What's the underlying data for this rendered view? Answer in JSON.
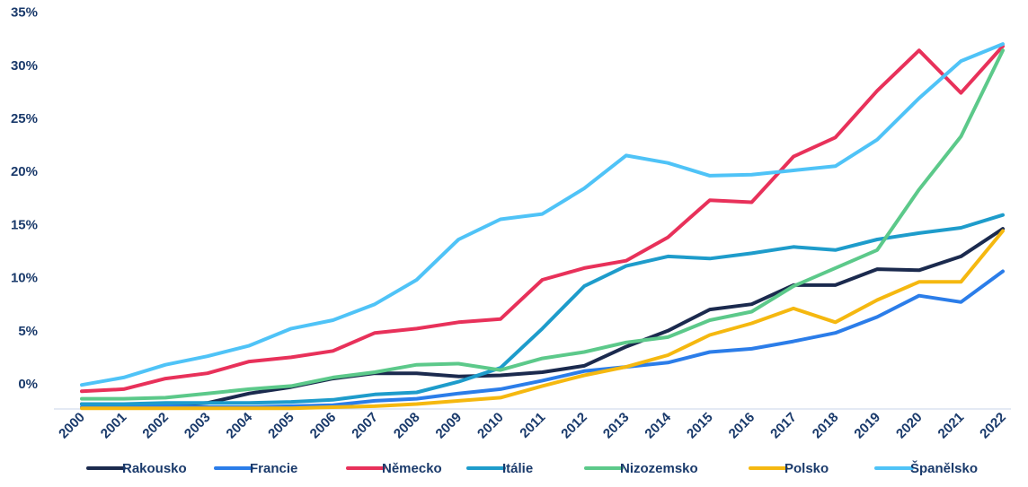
{
  "chart_data": {
    "type": "line",
    "x": [
      "2000",
      "2001",
      "2002",
      "2003",
      "2004",
      "2005",
      "2006",
      "2007",
      "2008",
      "2009",
      "2010",
      "2011",
      "2012",
      "2013",
      "2014",
      "2015",
      "2016",
      "2017",
      "2018",
      "2019",
      "2020",
      "2021",
      "2022"
    ],
    "yticks": [
      "0%",
      "5%",
      "10%",
      "15%",
      "20%",
      "25%",
      "30%",
      "35%"
    ],
    "ylim": [
      -2.5,
      35
    ],
    "grid": false,
    "legend_position": "bottom",
    "series": [
      {
        "name": "Rakousko",
        "color": "#1b2a4e",
        "values": [
          -1.9,
          -1.9,
          -2.0,
          -1.8,
          -0.9,
          -0.3,
          0.5,
          1.0,
          1.0,
          0.7,
          0.8,
          1.1,
          1.7,
          3.5,
          5.0,
          7.0,
          7.5,
          9.3,
          9.3,
          10.8,
          10.7,
          12.0,
          14.6
        ]
      },
      {
        "name": "Francie",
        "color": "#2b7de9",
        "values": [
          -2.2,
          -2.1,
          -2.1,
          -2.2,
          -2.2,
          -2.1,
          -2.0,
          -1.6,
          -1.4,
          -0.9,
          -0.5,
          0.3,
          1.2,
          1.6,
          2.0,
          3.0,
          3.3,
          4.0,
          4.8,
          6.3,
          8.3,
          7.7,
          10.6
        ]
      },
      {
        "name": "Německo",
        "color": "#e8315a",
        "values": [
          -0.7,
          -0.5,
          0.5,
          1.0,
          2.1,
          2.5,
          3.1,
          4.8,
          5.2,
          5.8,
          6.1,
          9.8,
          10.9,
          11.6,
          13.8,
          17.3,
          17.1,
          21.4,
          23.2,
          27.6,
          31.4,
          27.4,
          31.8
        ]
      },
      {
        "name": "Itálie",
        "color": "#1e9ccb",
        "values": [
          -1.9,
          -1.9,
          -1.8,
          -1.8,
          -1.8,
          -1.7,
          -1.5,
          -1.0,
          -0.8,
          0.2,
          1.5,
          5.2,
          9.2,
          11.1,
          12.0,
          11.8,
          12.3,
          12.9,
          12.6,
          13.6,
          14.2,
          14.7,
          15.9
        ]
      },
      {
        "name": "Nizozemsko",
        "color": "#5cc98a",
        "values": [
          -1.4,
          -1.4,
          -1.3,
          -0.9,
          -0.5,
          -0.2,
          0.6,
          1.1,
          1.8,
          1.9,
          1.3,
          2.4,
          3.0,
          3.9,
          4.4,
          6.0,
          6.8,
          9.2,
          10.9,
          12.6,
          18.3,
          23.3,
          31.4
        ]
      },
      {
        "name": "Polsko",
        "color": "#f5b810",
        "values": [
          -2.3,
          -2.3,
          -2.3,
          -2.3,
          -2.3,
          -2.3,
          -2.2,
          -2.1,
          -1.9,
          -1.6,
          -1.3,
          -0.2,
          0.8,
          1.6,
          2.7,
          4.6,
          5.7,
          7.1,
          5.8,
          7.9,
          9.6,
          9.6,
          14.4
        ]
      },
      {
        "name": "Španělsko",
        "color": "#4fc3f7",
        "values": [
          -0.1,
          0.6,
          1.8,
          2.6,
          3.6,
          5.2,
          6.0,
          7.5,
          9.8,
          13.6,
          15.5,
          16.0,
          18.4,
          21.5,
          20.8,
          19.6,
          19.7,
          20.1,
          20.5,
          23.0,
          26.9,
          30.4,
          32.0
        ]
      }
    ]
  }
}
